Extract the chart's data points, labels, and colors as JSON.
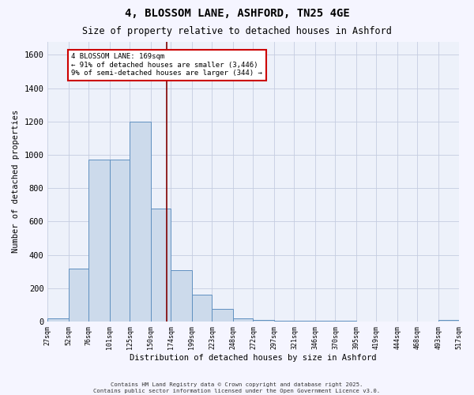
{
  "title": "4, BLOSSOM LANE, ASHFORD, TN25 4GE",
  "subtitle": "Size of property relative to detached houses in Ashford",
  "xlabel": "Distribution of detached houses by size in Ashford",
  "ylabel": "Number of detached properties",
  "bar_color": "#ccdaeb",
  "bar_edge_color": "#6090c0",
  "background_color": "#edf1fa",
  "grid_color": "#c5cde0",
  "annotation_text": "4 BLOSSOM LANE: 169sqm\n← 91% of detached houses are smaller (3,446)\n9% of semi-detached houses are larger (344) →",
  "vline_x": 169,
  "vline_color": "#800000",
  "annotation_box_color": "#ffffff",
  "annotation_box_edge": "#cc0000",
  "bin_edges": [
    27,
    52,
    76,
    101,
    125,
    150,
    174,
    199,
    223,
    248,
    272,
    297,
    321,
    346,
    370,
    395,
    419,
    444,
    468,
    493,
    517
  ],
  "bar_heights": [
    20,
    320,
    970,
    970,
    1200,
    680,
    310,
    160,
    75,
    20,
    10,
    5,
    5,
    5,
    5,
    0,
    0,
    0,
    0,
    10
  ],
  "ylim": [
    0,
    1680
  ],
  "yticks": [
    0,
    200,
    400,
    600,
    800,
    1000,
    1200,
    1400,
    1600
  ],
  "footer_line1": "Contains HM Land Registry data © Crown copyright and database right 2025.",
  "footer_line2": "Contains public sector information licensed under the Open Government Licence v3.0."
}
